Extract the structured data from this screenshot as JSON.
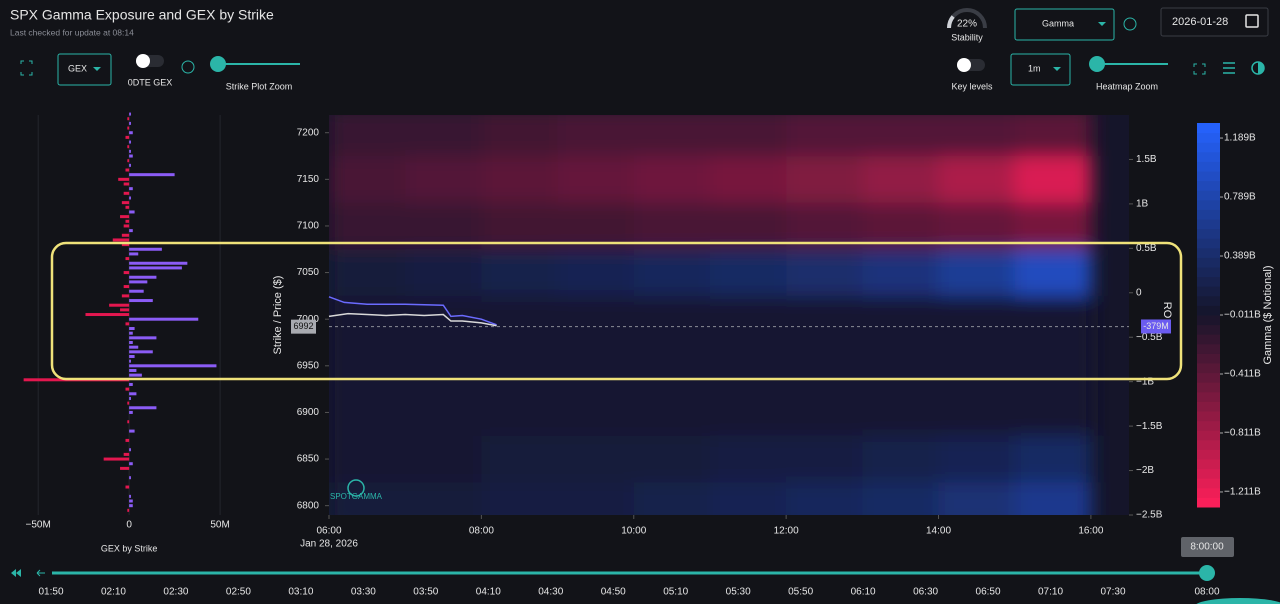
{
  "header": {
    "title": "SPX Gamma Exposure and GEX by Strike",
    "subtitle": "Last checked for update at 08:14"
  },
  "stability": {
    "value": 22,
    "label": "22%",
    "caption": "Stability"
  },
  "controls": {
    "metric_dropdown": "Gamma",
    "date": "2026-01-28",
    "mode_dropdown": "GEX",
    "dte_toggle": "0DTE GEX",
    "strike_zoom": "Strike Plot Zoom",
    "key_levels": "Key levels",
    "interval_dropdown": "1m",
    "heatmap_zoom": "Heatmap Zoom"
  },
  "gex_chart": {
    "xlabel": "GEX by Strike",
    "xlim": [
      -60000000,
      56000000
    ],
    "xticks": [
      {
        "value": -50000000,
        "label": "−50M"
      },
      0,
      {
        "value": 50000000,
        "label": "50M"
      }
    ],
    "ylim": [
      6790,
      7219
    ],
    "colors": {
      "positive": "#8b5cf6",
      "negative": "#e3174f"
    },
    "strikes": [
      7220,
      7215,
      7210,
      7205,
      7200,
      7195,
      7190,
      7185,
      7180,
      7175,
      7170,
      7165,
      7160,
      7155,
      7150,
      7145,
      7140,
      7135,
      7130,
      7125,
      7120,
      7115,
      7110,
      7105,
      7100,
      7095,
      7090,
      7085,
      7080,
      7075,
      7070,
      7065,
      7060,
      7055,
      7050,
      7045,
      7040,
      7035,
      7030,
      7025,
      7020,
      7015,
      7010,
      7005,
      7000,
      6995,
      6990,
      6985,
      6980,
      6975,
      6970,
      6965,
      6960,
      6955,
      6950,
      6945,
      6940,
      6935,
      6930,
      6925,
      6920,
      6915,
      6910,
      6905,
      6900,
      6890,
      6880,
      6870,
      6860,
      6855,
      6850,
      6845,
      6840,
      6830,
      6820,
      6810,
      6805,
      6800,
      6795
    ],
    "values": [
      1000000,
      -1000000,
      1000000,
      -1000000,
      2000000,
      -2000000,
      1000000,
      -1000000,
      1000000,
      2000000,
      -1000000,
      1000000,
      -2000000,
      25000000,
      -6000000,
      -3000000,
      2000000,
      -3000000,
      1000000,
      -4000000,
      -2000000,
      3000000,
      -5000000,
      -2000000,
      -3000000,
      2000000,
      -4000000,
      -9000000,
      -4000000,
      18000000,
      5000000,
      -2000000,
      32000000,
      29000000,
      -3000000,
      15000000,
      10000000,
      -3000000,
      8000000,
      -4000000,
      13000000,
      -11000000,
      -5000000,
      -24000000,
      38000000,
      -2000000,
      3000000,
      2000000,
      15000000,
      2000000,
      5000000,
      13000000,
      3000000,
      1000000,
      48000000,
      4000000,
      7000000,
      -58000000,
      2000000,
      -2000000,
      4000000,
      1000000,
      -1000000,
      15000000,
      2000000,
      -1000000,
      3000000,
      -2000000,
      1000000,
      -3000000,
      -14000000,
      2000000,
      -5000000,
      1000000,
      -2000000,
      1000000,
      2000000,
      2000000,
      -1000000
    ]
  },
  "heatmap": {
    "ylabel": "Strike / Price ($)",
    "y2label": "RO",
    "xlim": [
      6,
      16.5
    ],
    "xticks": [
      {
        "value": 6,
        "label": "06:00"
      },
      {
        "value": 8,
        "label": "08:00"
      },
      {
        "value": 10,
        "label": "10:00"
      },
      {
        "value": 12,
        "label": "12:00"
      },
      {
        "value": 14,
        "label": "14:00"
      },
      {
        "value": 16,
        "label": "16:00"
      }
    ],
    "date_label": "Jan 28, 2026",
    "ylim": [
      6790,
      7219
    ],
    "yticks": [
      6800,
      6850,
      6900,
      6950,
      7000,
      7050,
      7100,
      7150,
      7200
    ],
    "y2lim": [
      -2500000000,
      2000000000
    ],
    "y2ticks": [
      {
        "value": 1500000000,
        "label": "1.5B"
      },
      {
        "value": 1000000000,
        "label": "1B"
      },
      {
        "value": 500000000,
        "label": "0.5B"
      },
      0,
      {
        "value": -500000000,
        "label": "−0.5B"
      },
      {
        "value": -1000000000,
        "label": "−1B"
      },
      {
        "value": -1500000000,
        "label": "−1.5B"
      },
      {
        "value": -2000000000,
        "label": "−2B"
      },
      {
        "value": -2500000000,
        "label": "−2.5B"
      }
    ],
    "times": [
      6,
      7,
      8,
      9,
      10,
      11,
      12,
      13,
      14,
      15
    ],
    "strikes": [
      7200,
      7150,
      7100,
      7050,
      7000,
      6950,
      6900,
      6850,
      6800
    ],
    "values": [
      [
        -200000000,
        -200000000,
        -250000000,
        -300000000,
        -300000000,
        -300000000,
        -350000000,
        -350000000,
        -350000000,
        -400000000
      ],
      [
        -300000000,
        -350000000,
        -400000000,
        -450000000,
        -500000000,
        -550000000,
        -600000000,
        -700000000,
        -850000000,
        -1100000000
      ],
      [
        -200000000,
        -200000000,
        -250000000,
        -250000000,
        -300000000,
        -300000000,
        -350000000,
        -400000000,
        -450000000,
        -550000000
      ],
      [
        100000000,
        150000000,
        200000000,
        250000000,
        300000000,
        350000000,
        400000000,
        500000000,
        650000000,
        900000000
      ],
      [
        50000000,
        50000000,
        50000000,
        50000000,
        50000000,
        50000000,
        50000000,
        50000000,
        50000000,
        50000000
      ],
      [
        50000000,
        50000000,
        50000000,
        50000000,
        50000000,
        50000000,
        50000000,
        50000000,
        50000000,
        50000000
      ],
      [
        50000000,
        50000000,
        50000000,
        50000000,
        50000000,
        50000000,
        50000000,
        50000000,
        50000000,
        50000000
      ],
      [
        50000000,
        50000000,
        100000000,
        100000000,
        100000000,
        150000000,
        150000000,
        200000000,
        250000000,
        350000000
      ],
      [
        100000000,
        100000000,
        150000000,
        150000000,
        200000000,
        250000000,
        300000000,
        350000000,
        450000000,
        600000000
      ]
    ],
    "clim": [
      -1313000000,
      1291000000
    ],
    "colorbar_label": "Gamma ($ Notional)",
    "colorbar_ticks": [
      {
        "value": 1189000000,
        "label": "1.189B"
      },
      {
        "value": 789000000,
        "label": "0.789B"
      },
      {
        "value": 389000000,
        "label": "0.389B"
      },
      {
        "value": -11000000,
        "label": "−0.011B"
      },
      {
        "value": -411000000,
        "label": "−0.411B"
      },
      {
        "value": -811000000,
        "label": "−0.811B"
      },
      {
        "value": -1211000000,
        "label": "−1.211B"
      }
    ],
    "colors": {
      "negative": "#ff1f5a",
      "neutral": "#15152a",
      "positive": "#2563ff"
    },
    "price": {
      "color": "#d9d9d9",
      "x": [
        6,
        6.25,
        6.5,
        6.75,
        7,
        7.25,
        7.5,
        7.6,
        7.75,
        8,
        8.2
      ],
      "y": [
        7003,
        7006,
        7005,
        7004,
        7005,
        7004,
        7005,
        6998,
        6998,
        6996,
        6993
      ]
    },
    "level_line": {
      "color": "#6b6bff",
      "x": [
        6,
        6.2,
        6.5,
        6.75,
        7,
        7.5,
        7.6,
        7.75,
        8,
        8.2
      ],
      "y": [
        7024,
        7018,
        7016,
        7016,
        7016,
        7015,
        7003,
        7004,
        7000,
        6994
      ]
    },
    "spot": {
      "value": 6992,
      "label": "6992"
    },
    "zero_gamma": {
      "value": -379000000,
      "label": "-379M"
    },
    "logo": "SPOTGAMMA"
  },
  "timeline": {
    "ticks": [
      "01:50",
      "02:10",
      "02:30",
      "02:50",
      "03:10",
      "03:30",
      "03:50",
      "04:10",
      "04:30",
      "04:50",
      "05:10",
      "05:30",
      "05:50",
      "06:10",
      "06:30",
      "06:50",
      "07:10",
      "07:30"
    ],
    "end": "08:00",
    "current": "8:00:00"
  }
}
